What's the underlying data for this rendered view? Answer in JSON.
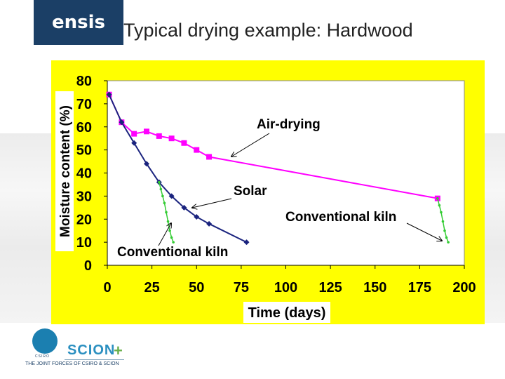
{
  "header": {
    "logo_text": "ensis",
    "title": "Typical drying example: Hardwood"
  },
  "footer": {
    "csiro_label": "CSIRO",
    "scion_label": "SCION",
    "scion_plus": "+",
    "tagline": "THE JOINT FORCES OF CSIRO & SCION"
  },
  "colors": {
    "panel": "#ffff00",
    "air_drying": "#ff00ff",
    "solar": "#1a237e",
    "kiln": "#33cc33"
  },
  "chart_data": {
    "type": "line",
    "xlabel": "Time (days)",
    "ylabel": "Moisture content (%)",
    "xlim": [
      0,
      200
    ],
    "ylim": [
      0,
      80
    ],
    "xticks": [
      0,
      25,
      50,
      75,
      100,
      125,
      150,
      175,
      200
    ],
    "yticks": [
      0,
      10,
      20,
      30,
      40,
      50,
      60,
      70,
      80
    ],
    "grid": false,
    "series": [
      {
        "name": "Air-drying",
        "color": "#ff00ff",
        "marker": "square",
        "x": [
          1,
          8,
          15,
          22,
          29,
          36,
          43,
          50,
          57,
          185
        ],
        "y": [
          74,
          62,
          57,
          58,
          56,
          55,
          53,
          50,
          47,
          29
        ]
      },
      {
        "name": "Solar",
        "color": "#1a237e",
        "marker": "diamond",
        "x": [
          1,
          8,
          15,
          22,
          29,
          36,
          43,
          50,
          57,
          78
        ],
        "y": [
          74,
          62,
          53,
          44,
          36,
          30,
          25,
          21,
          18,
          10
        ]
      },
      {
        "name": "Conventional kiln",
        "color": "#33cc33",
        "marker": "dot",
        "x": [
          29,
          30,
          31,
          32,
          33,
          34,
          35,
          36,
          37
        ],
        "y": [
          36,
          33,
          30,
          27,
          23,
          19,
          15,
          12,
          10
        ]
      },
      {
        "name": "Conventional kiln",
        "color": "#33cc33",
        "marker": "dot",
        "x": [
          185,
          186,
          187,
          188,
          189,
          190,
          191
        ],
        "y": [
          29,
          26,
          23,
          19,
          15,
          12,
          10
        ]
      }
    ],
    "annotations": [
      {
        "text": "Air-drying"
      },
      {
        "text": "Solar"
      },
      {
        "text": "Conventional kiln"
      },
      {
        "text": "Conventional kiln"
      }
    ]
  }
}
